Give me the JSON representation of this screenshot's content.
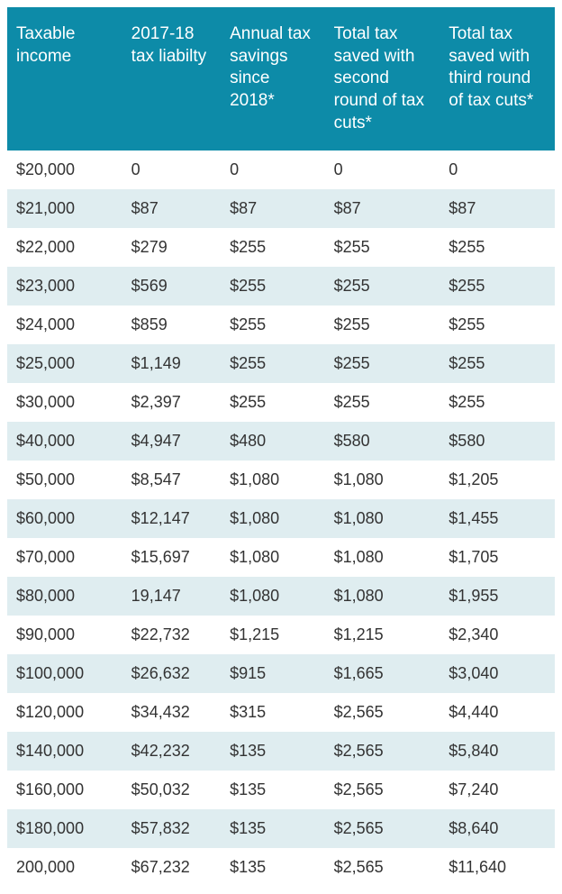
{
  "table": {
    "type": "table",
    "header_bg_color": "#0d8ba8",
    "header_text_color": "#ffffff",
    "row_odd_bg": "#ffffff",
    "row_even_bg": "#dfedf0",
    "cell_text_color": "#333333",
    "header_fontsize": 19,
    "cell_fontsize": 18,
    "columns": [
      "Taxable income",
      "2017-18 tax liabilty",
      "Annual tax savings since 2018*",
      "Total tax saved with second round of tax cuts*",
      "Total tax saved with third round of tax cuts*"
    ],
    "rows": [
      [
        "$20,000",
        "0",
        "0",
        "0",
        "0"
      ],
      [
        "$21,000",
        "$87",
        "$87",
        "$87",
        "$87"
      ],
      [
        "$22,000",
        "$279",
        "$255",
        "$255",
        "$255"
      ],
      [
        "$23,000",
        "$569",
        "$255",
        "$255",
        "$255"
      ],
      [
        "$24,000",
        "$859",
        "$255",
        "$255",
        "$255"
      ],
      [
        "$25,000",
        "$1,149",
        "$255",
        "$255",
        "$255"
      ],
      [
        "$30,000",
        "$2,397",
        "$255",
        "$255",
        "$255"
      ],
      [
        "$40,000",
        "$4,947",
        "$480",
        "$580",
        "$580"
      ],
      [
        "$50,000",
        "$8,547",
        "$1,080",
        "$1,080",
        "$1,205"
      ],
      [
        "$60,000",
        "$12,147",
        "$1,080",
        "$1,080",
        "$1,455"
      ],
      [
        "$70,000",
        "$15,697",
        "$1,080",
        "$1,080",
        "$1,705"
      ],
      [
        "$80,000",
        "19,147",
        "$1,080",
        "$1,080",
        "$1,955"
      ],
      [
        "$90,000",
        "$22,732",
        "$1,215",
        "$1,215",
        "$2,340"
      ],
      [
        "$100,000",
        "$26,632",
        "$915",
        "$1,665",
        "$3,040"
      ],
      [
        "$120,000",
        "$34,432",
        "$315",
        "$2,565",
        "$4,440"
      ],
      [
        "$140,000",
        "$42,232",
        "$135",
        "$2,565",
        "$5,840"
      ],
      [
        "$160,000",
        "$50,032",
        "$135",
        "$2,565",
        "$7,240"
      ],
      [
        "$180,000",
        "$57,832",
        "$135",
        "$2,565",
        "$8,640"
      ],
      [
        "200,000",
        "$67,232",
        "$135",
        "$2,565",
        "$11,640"
      ]
    ]
  }
}
